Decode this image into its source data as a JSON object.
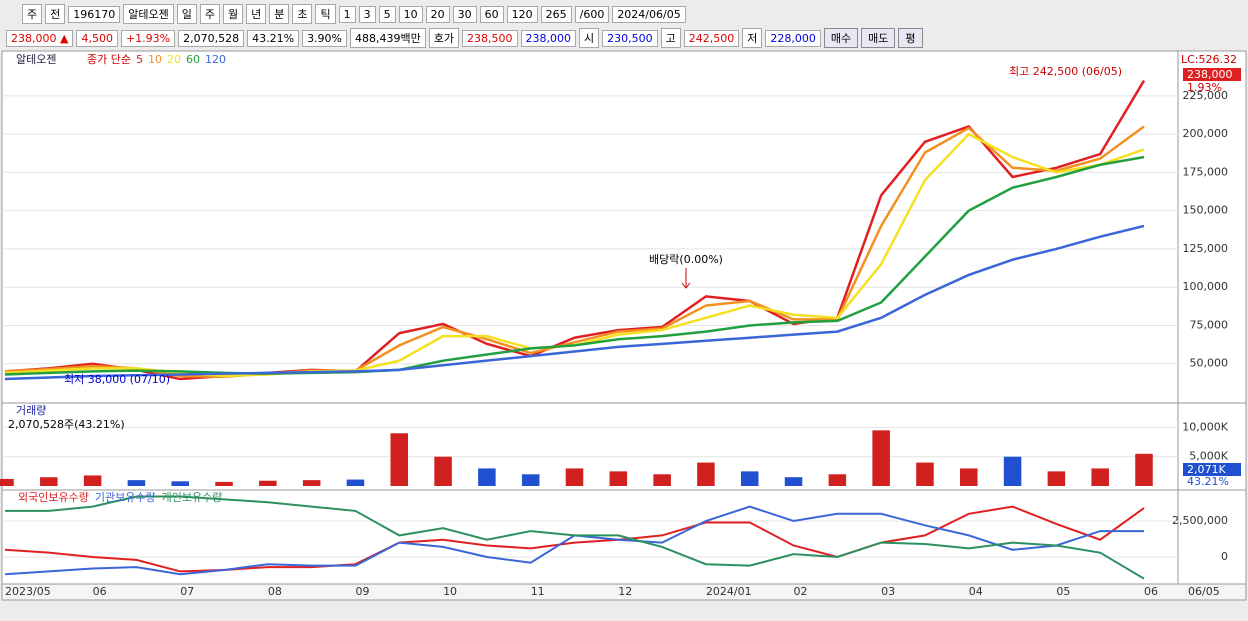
{
  "toolbar": {
    "items": [
      "주",
      "전",
      "196170",
      "알테오젠",
      "일",
      "주",
      "월",
      "년",
      "분",
      "초",
      "틱",
      "1",
      "3",
      "5",
      "10",
      "20",
      "30",
      "60",
      "120",
      "265",
      "/600",
      "2024/06/05"
    ]
  },
  "infobar": {
    "items": [
      "238,000 ▲",
      "4,500",
      "+1.93%",
      "2,070,528",
      "43.21%",
      "3.90%",
      "488,439백만",
      "호가",
      "238,500",
      "238,000",
      "시",
      "230,500",
      "고",
      "242,500",
      "저",
      "228,000"
    ],
    "buttons": [
      "매수",
      "매도",
      "평"
    ]
  },
  "chart_data": [
    {
      "type": "line",
      "title": "알테오젠",
      "legend_title": "종가 단순",
      "categories": [
        "2023/05",
        null,
        "06",
        null,
        "07",
        null,
        "08",
        null,
        "09",
        null,
        "10",
        null,
        "11",
        null,
        "12",
        null,
        "2024/01",
        null,
        "02",
        null,
        "03",
        null,
        "04",
        null,
        "05",
        null,
        "06"
      ],
      "x_end_label": "06/05",
      "ylim": [
        25000,
        253000
      ],
      "yticks": [
        {
          "value": 50000,
          "label": "50,000"
        },
        {
          "value": 75000,
          "label": "75,000"
        },
        {
          "value": 100000,
          "label": "100,000"
        },
        {
          "value": 125000,
          "label": "125,000"
        },
        {
          "value": 150000,
          "label": "150,000"
        },
        {
          "value": 175000,
          "label": "175,000"
        },
        {
          "value": 200000,
          "label": "200,000"
        },
        {
          "value": 225000,
          "label": "225,000"
        }
      ],
      "grid": true,
      "series": [
        {
          "name": "5",
          "color": "#e02020",
          "values": [
            45000,
            47000,
            50000,
            46000,
            40000,
            42000,
            44000,
            46000,
            45000,
            70000,
            76000,
            63000,
            55000,
            67000,
            72000,
            74000,
            94000,
            91000,
            76000,
            80000,
            160000,
            195000,
            205000,
            172000,
            178000,
            187000,
            235000
          ]
        },
        {
          "name": "10",
          "color": "#f39020",
          "values": [
            45000,
            46500,
            48500,
            47000,
            42000,
            41500,
            43500,
            45500,
            45500,
            62000,
            74000,
            66000,
            57000,
            64000,
            71000,
            73000,
            88000,
            91000,
            79000,
            79000,
            140000,
            188000,
            204000,
            178000,
            176000,
            184000,
            205000
          ]
        },
        {
          "name": "20",
          "color": "#f5e020",
          "values": [
            44000,
            45500,
            47000,
            47000,
            44000,
            42000,
            43000,
            45000,
            45500,
            52000,
            68000,
            68000,
            60000,
            62000,
            69000,
            72000,
            80000,
            88000,
            82000,
            80000,
            115000,
            170000,
            200000,
            185000,
            175000,
            180000,
            190000
          ]
        },
        {
          "name": "60",
          "color": "#22a040",
          "values": [
            43000,
            44000,
            45000,
            45500,
            45000,
            44000,
            43500,
            44000,
            44500,
            46000,
            52000,
            56000,
            60000,
            62000,
            66000,
            68000,
            71000,
            75000,
            77000,
            78000,
            90000,
            120000,
            150000,
            165000,
            172000,
            180000,
            185000
          ]
        },
        {
          "name": "120",
          "color": "#3a66d8",
          "values": [
            40000,
            41000,
            42000,
            42500,
            43000,
            43500,
            44000,
            44500,
            45000,
            46000,
            49000,
            52000,
            55000,
            58000,
            61000,
            63000,
            65000,
            67000,
            69000,
            71000,
            80000,
            95000,
            108000,
            118000,
            125000,
            133000,
            140000
          ]
        }
      ],
      "annotations": {
        "high": "최고 242,500 (06/05)",
        "low": "최저 38,000 (07/10)",
        "dividend": "배당락(0.00%)",
        "lc": "LC:526.32",
        "last_price": "238,000",
        "last_change": "1.93%"
      }
    },
    {
      "type": "bar",
      "title": "거래량",
      "subtitle": "2,070,528주(43.21%)",
      "ylim": [
        0,
        14000
      ],
      "yticks": [
        {
          "value": 5000,
          "label": "5,000K"
        },
        {
          "value": 10000,
          "label": "10,000K"
        }
      ],
      "values": [
        1200,
        1500,
        1800,
        1000,
        800,
        700,
        900,
        1000,
        1100,
        9000,
        5000,
        3000,
        2000,
        3000,
        2500,
        2000,
        4000,
        2500,
        1500,
        2000,
        9500,
        4000,
        3000,
        5000,
        2500,
        3000,
        5500
      ],
      "colors": [
        "#d02020",
        "#d02020",
        "#d02020",
        "#2050d0",
        "#2050d0",
        "#d02020",
        "#d02020",
        "#d02020",
        "#2050d0",
        "#d02020",
        "#d02020",
        "#2050d0",
        "#2050d0",
        "#d02020",
        "#d02020",
        "#d02020",
        "#d02020",
        "#2050d0",
        "#2050d0",
        "#d02020",
        "#d02020",
        "#d02020",
        "#d02020",
        "#2050d0",
        "#d02020",
        "#d02020",
        "#d02020"
      ],
      "annotations": {
        "last": "2,071K",
        "ratio": "43.21%"
      }
    },
    {
      "type": "line",
      "ylim": [
        -1805000,
        4583000
      ],
      "yticks": [
        0,
        {
          "value": 2500000,
          "label": "2,500,000"
        }
      ],
      "series": [
        {
          "name": "외국인보유수량",
          "color": "#e02020",
          "values": [
            500000,
            300000,
            0,
            -200000,
            -1000000,
            -900000,
            -700000,
            -700000,
            -500000,
            1000000,
            1200000,
            800000,
            600000,
            1000000,
            1200000,
            1500000,
            2400000,
            2400000,
            800000,
            0,
            1000000,
            1500000,
            3000000,
            3500000,
            2300000,
            1200000,
            3400000
          ]
        },
        {
          "name": "기관보유수량",
          "color": "#3a66d8",
          "values": [
            -1200000,
            -1000000,
            -800000,
            -700000,
            -1200000,
            -900000,
            -500000,
            -600000,
            -600000,
            1000000,
            700000,
            0,
            -400000,
            1500000,
            1200000,
            1000000,
            2500000,
            3500000,
            2500000,
            3000000,
            3000000,
            2200000,
            1500000,
            500000,
            800000,
            1800000,
            1800000
          ]
        },
        {
          "name": "개인보유수량",
          "color": "#2e9060",
          "values": [
            3200000,
            3200000,
            3500000,
            4200000,
            4200000,
            4000000,
            3800000,
            3500000,
            3200000,
            1500000,
            2000000,
            1200000,
            1800000,
            1500000,
            1500000,
            700000,
            -500000,
            -600000,
            200000,
            0,
            1000000,
            900000,
            600000,
            1000000,
            800000,
            300000,
            -1500000
          ]
        }
      ]
    }
  ]
}
